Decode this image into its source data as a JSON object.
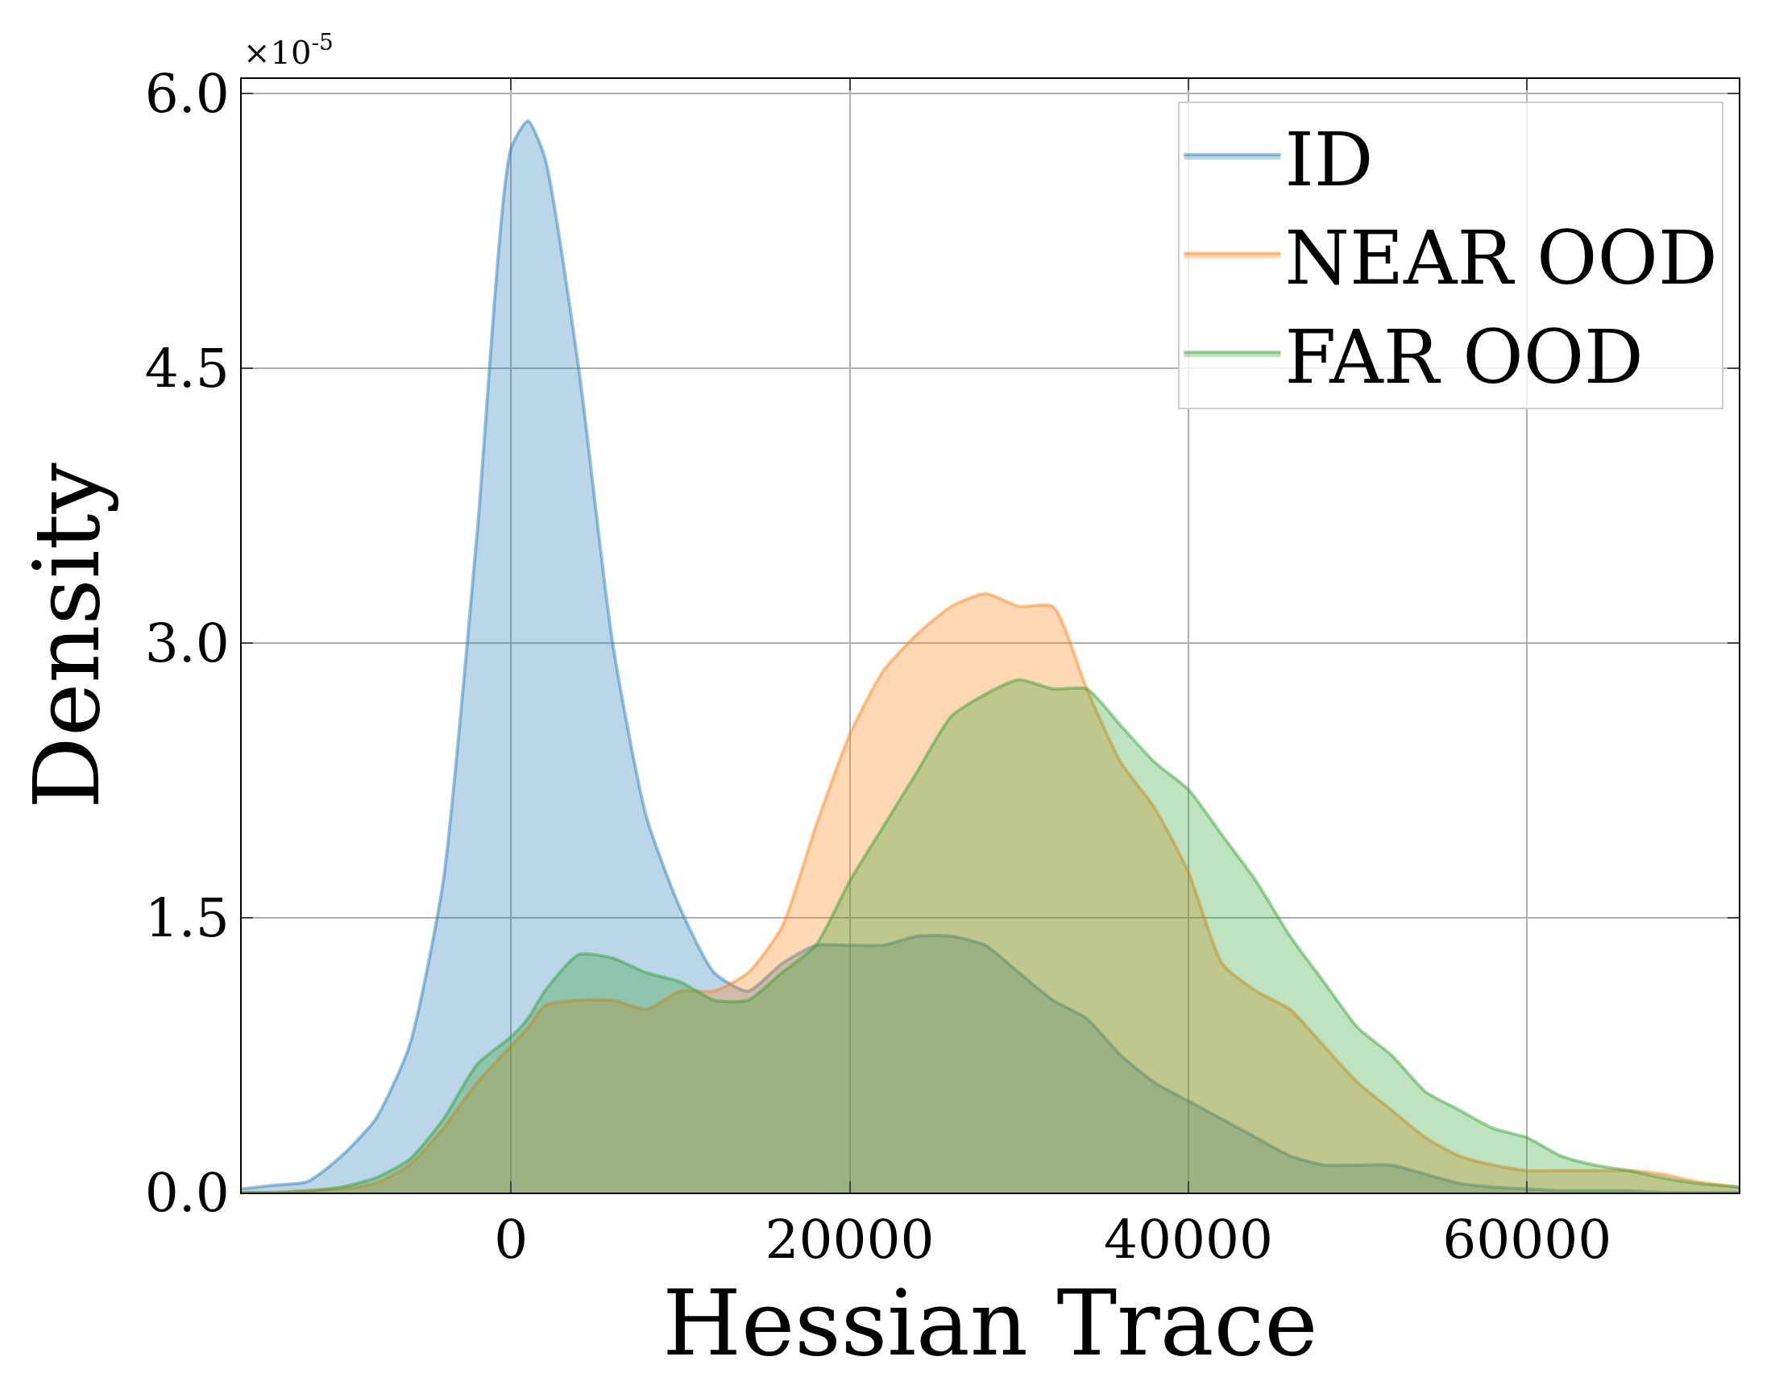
{
  "chart_data": {
    "type": "area",
    "xlabel": "Hessian Trace",
    "ylabel": "Density",
    "annotations": [
      "×10$^{-5}$"
    ],
    "x": [
      -15900,
      -14000,
      -12000,
      -10000,
      -8000,
      -6000,
      -4000,
      -2000,
      0,
      1000,
      2000,
      4000,
      6000,
      8000,
      10000,
      12000,
      14000,
      16000,
      18000,
      20000,
      22000,
      24000,
      26000,
      28000,
      30000,
      32000,
      34000,
      36000,
      38000,
      40000,
      42000,
      44000,
      46000,
      48000,
      50000,
      52000,
      54000,
      56000,
      58000,
      60000,
      62000,
      64000,
      66000,
      68000,
      70000,
      72500
    ],
    "series": [
      {
        "name": "ID",
        "color": "#1f77b4",
        "values": [
          0.02,
          0.04,
          0.06,
          0.2,
          0.4,
          0.8,
          1.7,
          3.6,
          5.7,
          5.85,
          5.65,
          4.5,
          3.0,
          2.05,
          1.55,
          1.2,
          1.1,
          1.25,
          1.35,
          1.35,
          1.35,
          1.4,
          1.4,
          1.35,
          1.2,
          1.05,
          0.95,
          0.75,
          0.6,
          0.5,
          0.4,
          0.3,
          0.2,
          0.15,
          0.15,
          0.15,
          0.1,
          0.05,
          0.03,
          0.02,
          0.01,
          0.01,
          0.01,
          0,
          0,
          0
        ]
      },
      {
        "name": "NEAR OOD",
        "color": "#ff7f0e",
        "values": [
          0,
          0,
          0.01,
          0.02,
          0.05,
          0.15,
          0.35,
          0.6,
          0.8,
          0.9,
          1.02,
          1.05,
          1.05,
          1.0,
          1.1,
          1.1,
          1.2,
          1.45,
          2.0,
          2.5,
          2.85,
          3.05,
          3.2,
          3.27,
          3.2,
          3.2,
          2.75,
          2.35,
          2.1,
          1.75,
          1.25,
          1.1,
          1.0,
          0.8,
          0.6,
          0.45,
          0.3,
          0.2,
          0.15,
          0.12,
          0.12,
          0.12,
          0.12,
          0.1,
          0.06,
          0.03
        ]
      },
      {
        "name": "FAR OOD",
        "color": "#2ca02c",
        "values": [
          0,
          0,
          0.01,
          0.03,
          0.08,
          0.18,
          0.4,
          0.7,
          0.85,
          0.95,
          1.1,
          1.3,
          1.28,
          1.2,
          1.15,
          1.05,
          1.05,
          1.2,
          1.35,
          1.7,
          2.0,
          2.3,
          2.6,
          2.72,
          2.8,
          2.75,
          2.75,
          2.55,
          2.35,
          2.2,
          1.95,
          1.7,
          1.4,
          1.15,
          0.9,
          0.75,
          0.55,
          0.45,
          0.35,
          0.3,
          0.2,
          0.15,
          0.12,
          0.08,
          0.05,
          0.03
        ]
      }
    ],
    "xlim": [
      -15900,
      72500
    ],
    "ylim": [
      0,
      6.08
    ],
    "xticks": [
      0,
      20000,
      40000,
      60000
    ],
    "yticks": [
      {
        "value": 0,
        "label": "0.0"
      },
      {
        "value": 1.5,
        "label": "1.5"
      },
      {
        "value": 3,
        "label": "3.0"
      },
      {
        "value": 4.5,
        "label": "4.5"
      },
      {
        "value": 6,
        "label": "6.0"
      }
    ],
    "grid": true,
    "legend": "top right"
  }
}
